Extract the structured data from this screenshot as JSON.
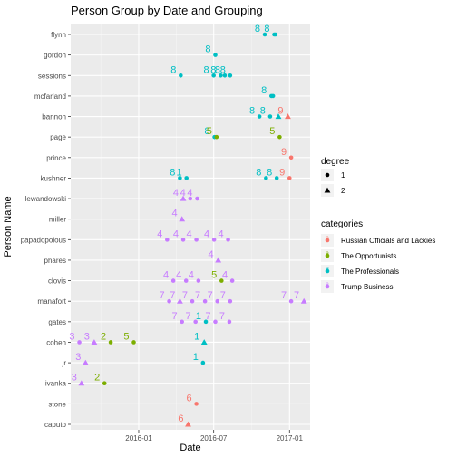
{
  "chart_data": {
    "type": "scatter",
    "title": "Person Group by Date and Grouping",
    "xlabel": "Date",
    "ylabel": "Person Name",
    "x_ticks": [
      "2016-01",
      "2016-07",
      "2017-01"
    ],
    "x_range": [
      "2015-07-20",
      "2017-02-20"
    ],
    "y_categories": [
      "flynn",
      "gordon",
      "sessions",
      "mcfarland",
      "bannon",
      "page",
      "prince",
      "kushner",
      "lewandowski",
      "miller",
      "papadopolous",
      "phares",
      "clovis",
      "manafort",
      "gates",
      "cohen",
      "jr",
      "ivanka",
      "stone",
      "caputo"
    ],
    "grid": true,
    "legend_position": "right",
    "shape_legend": {
      "title": "degree",
      "entries": [
        {
          "label": "1",
          "shape": "circle"
        },
        {
          "label": "2",
          "shape": "triangle"
        }
      ]
    },
    "color_legend": {
      "title": "categories",
      "entries": [
        {
          "label": "Russian Officials and Lackies",
          "color": "#F8766D"
        },
        {
          "label": "The Opportunists",
          "color": "#7CAE00"
        },
        {
          "label": "The Professionals",
          "color": "#00BFC4"
        },
        {
          "label": "Trump Business",
          "color": "#C77CFF"
        }
      ]
    },
    "points": [
      {
        "person": "flynn",
        "date": "2016-11-02",
        "cat": 2,
        "deg": 1,
        "label": "8"
      },
      {
        "person": "flynn",
        "date": "2016-11-25",
        "cat": 2,
        "deg": 1,
        "label": "8"
      },
      {
        "person": "flynn",
        "date": "2016-11-28",
        "cat": 2,
        "deg": 1,
        "label": ""
      },
      {
        "person": "gordon",
        "date": "2016-07-05",
        "cat": 2,
        "deg": 1,
        "label": "8"
      },
      {
        "person": "sessions",
        "date": "2016-04-12",
        "cat": 2,
        "deg": 1,
        "label": "8"
      },
      {
        "person": "sessions",
        "date": "2016-07-01",
        "cat": 2,
        "deg": 1,
        "label": "8"
      },
      {
        "person": "sessions",
        "date": "2016-07-18",
        "cat": 2,
        "deg": 1,
        "label": "8"
      },
      {
        "person": "sessions",
        "date": "2016-07-28",
        "cat": 2,
        "deg": 1,
        "label": "8"
      },
      {
        "person": "sessions",
        "date": "2016-08-10",
        "cat": 2,
        "deg": 1,
        "label": "8"
      },
      {
        "person": "mcfarland",
        "date": "2016-11-18",
        "cat": 2,
        "deg": 1,
        "label": "8"
      },
      {
        "person": "mcfarland",
        "date": "2016-11-22",
        "cat": 2,
        "deg": 1,
        "label": ""
      },
      {
        "person": "bannon",
        "date": "2016-10-20",
        "cat": 2,
        "deg": 1,
        "label": "8"
      },
      {
        "person": "bannon",
        "date": "2016-11-15",
        "cat": 2,
        "deg": 1,
        "label": "8"
      },
      {
        "person": "bannon",
        "date": "2016-12-05",
        "cat": 2,
        "deg": 2,
        "label": ""
      },
      {
        "person": "bannon",
        "date": "2016-12-28",
        "cat": 0,
        "deg": 2,
        "label": "9"
      },
      {
        "person": "page",
        "date": "2016-07-03",
        "cat": 2,
        "deg": 1,
        "label": "8"
      },
      {
        "person": "page",
        "date": "2016-07-08",
        "cat": 1,
        "deg": 1,
        "label": "5"
      },
      {
        "person": "page",
        "date": "2016-12-08",
        "cat": 1,
        "deg": 1,
        "label": "5"
      },
      {
        "person": "prince",
        "date": "2017-01-05",
        "cat": 0,
        "deg": 1,
        "label": "9"
      },
      {
        "person": "kushner",
        "date": "2016-04-10",
        "cat": 2,
        "deg": 1,
        "label": "8"
      },
      {
        "person": "kushner",
        "date": "2016-04-26",
        "cat": 2,
        "deg": 1,
        "label": "1"
      },
      {
        "person": "kushner",
        "date": "2016-11-05",
        "cat": 2,
        "deg": 1,
        "label": "8"
      },
      {
        "person": "kushner",
        "date": "2016-12-01",
        "cat": 2,
        "deg": 1,
        "label": "8"
      },
      {
        "person": "kushner",
        "date": "2017-01-01",
        "cat": 0,
        "deg": 1,
        "label": "9"
      },
      {
        "person": "lewandowski",
        "date": "2016-04-18",
        "cat": 3,
        "deg": 2,
        "label": "4"
      },
      {
        "person": "lewandowski",
        "date": "2016-05-05",
        "cat": 3,
        "deg": 1,
        "label": "4"
      },
      {
        "person": "lewandowski",
        "date": "2016-05-22",
        "cat": 3,
        "deg": 1,
        "label": "4"
      },
      {
        "person": "miller",
        "date": "2016-04-15",
        "cat": 3,
        "deg": 2,
        "label": "4"
      },
      {
        "person": "papadopolous",
        "date": "2016-03-10",
        "cat": 3,
        "deg": 1,
        "label": "4"
      },
      {
        "person": "papadopolous",
        "date": "2016-04-18",
        "cat": 3,
        "deg": 1,
        "label": "4"
      },
      {
        "person": "papadopolous",
        "date": "2016-05-20",
        "cat": 3,
        "deg": 1,
        "label": "4"
      },
      {
        "person": "papadopolous",
        "date": "2016-07-02",
        "cat": 3,
        "deg": 1,
        "label": "4"
      },
      {
        "person": "papadopolous",
        "date": "2016-08-05",
        "cat": 3,
        "deg": 1,
        "label": "4"
      },
      {
        "person": "phares",
        "date": "2016-07-12",
        "cat": 3,
        "deg": 2,
        "label": "4"
      },
      {
        "person": "clovis",
        "date": "2016-03-25",
        "cat": 3,
        "deg": 1,
        "label": "4"
      },
      {
        "person": "clovis",
        "date": "2016-04-25",
        "cat": 3,
        "deg": 1,
        "label": "4"
      },
      {
        "person": "clovis",
        "date": "2016-05-25",
        "cat": 3,
        "deg": 1,
        "label": "4"
      },
      {
        "person": "clovis",
        "date": "2016-07-20",
        "cat": 1,
        "deg": 1,
        "label": "5"
      },
      {
        "person": "clovis",
        "date": "2016-08-15",
        "cat": 3,
        "deg": 1,
        "label": "4"
      },
      {
        "person": "manafort",
        "date": "2016-03-15",
        "cat": 3,
        "deg": 1,
        "label": "7"
      },
      {
        "person": "manafort",
        "date": "2016-04-10",
        "cat": 3,
        "deg": 2,
        "label": "7"
      },
      {
        "person": "manafort",
        "date": "2016-05-10",
        "cat": 3,
        "deg": 1,
        "label": "7"
      },
      {
        "person": "manafort",
        "date": "2016-06-10",
        "cat": 3,
        "deg": 1,
        "label": "7"
      },
      {
        "person": "manafort",
        "date": "2016-07-10",
        "cat": 3,
        "deg": 1,
        "label": "7"
      },
      {
        "person": "manafort",
        "date": "2016-08-10",
        "cat": 3,
        "deg": 1,
        "label": "7"
      },
      {
        "person": "manafort",
        "date": "2017-01-05",
        "cat": 3,
        "deg": 1,
        "label": "7"
      },
      {
        "person": "manafort",
        "date": "2017-02-05",
        "cat": 3,
        "deg": 2,
        "label": "7"
      },
      {
        "person": "gates",
        "date": "2016-04-15",
        "cat": 3,
        "deg": 1,
        "label": "7"
      },
      {
        "person": "gates",
        "date": "2016-05-18",
        "cat": 3,
        "deg": 1,
        "label": "7"
      },
      {
        "person": "gates",
        "date": "2016-06-12",
        "cat": 2,
        "deg": 1,
        "label": "1"
      },
      {
        "person": "gates",
        "date": "2016-07-05",
        "cat": 3,
        "deg": 1,
        "label": "7"
      },
      {
        "person": "gates",
        "date": "2016-08-08",
        "cat": 3,
        "deg": 1,
        "label": "7"
      },
      {
        "person": "cohen",
        "date": "2015-08-10",
        "cat": 3,
        "deg": 1,
        "label": "3"
      },
      {
        "person": "cohen",
        "date": "2015-09-15",
        "cat": 3,
        "deg": 2,
        "label": "3"
      },
      {
        "person": "cohen",
        "date": "2015-10-25",
        "cat": 1,
        "deg": 1,
        "label": "2"
      },
      {
        "person": "cohen",
        "date": "2015-12-20",
        "cat": 1,
        "deg": 1,
        "label": "5"
      },
      {
        "person": "cohen",
        "date": "2016-06-08",
        "cat": 2,
        "deg": 2,
        "label": "1"
      },
      {
        "person": "jr",
        "date": "2015-08-25",
        "cat": 3,
        "deg": 2,
        "label": "3"
      },
      {
        "person": "jr",
        "date": "2016-06-05",
        "cat": 2,
        "deg": 1,
        "label": "1"
      },
      {
        "person": "ivanka",
        "date": "2015-08-15",
        "cat": 3,
        "deg": 2,
        "label": "3"
      },
      {
        "person": "ivanka",
        "date": "2015-10-10",
        "cat": 1,
        "deg": 1,
        "label": "2"
      },
      {
        "person": "stone",
        "date": "2016-05-20",
        "cat": 0,
        "deg": 1,
        "label": "6"
      },
      {
        "person": "caputo",
        "date": "2016-04-30",
        "cat": 0,
        "deg": 2,
        "label": "6"
      }
    ]
  }
}
